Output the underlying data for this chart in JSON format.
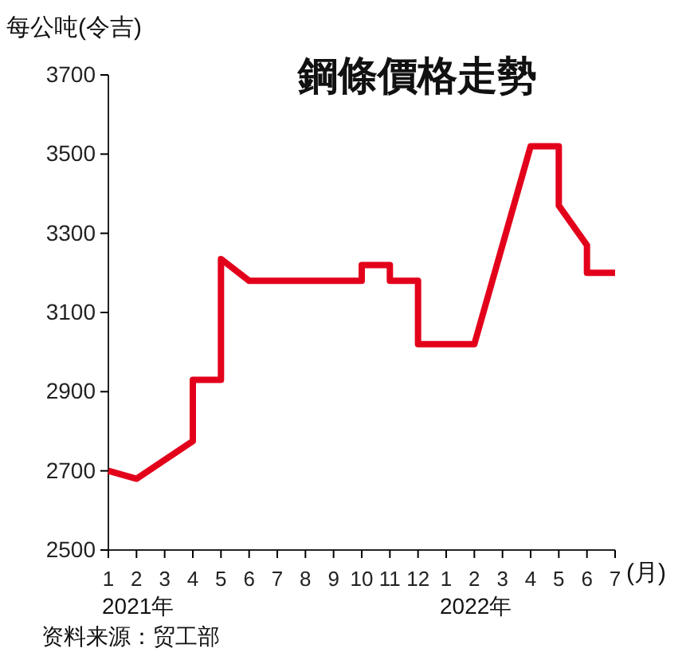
{
  "chart_data": {
    "type": "line",
    "title": "鋼條價格走勢",
    "ylabel": "每公吨(令吉)",
    "xlabel": "(月)",
    "annotations": [
      "2021年",
      "2022年",
      "资料来源：贸工部"
    ],
    "series": [
      {
        "color": "#e3001b",
        "x": [
          "2021-01",
          "2021-02",
          "2021-04",
          "2021-04",
          "2021-05",
          "2021-05",
          "2021-06",
          "2021-10",
          "2021-10",
          "2021-11",
          "2021-11",
          "2021-12",
          "2021-12",
          "2022-02",
          "2022-04",
          "2022-05",
          "2022-05",
          "2022-06",
          "2022-06",
          "2022-07"
        ],
        "values": [
          2700,
          2680,
          2775,
          2930,
          2930,
          3235,
          3180,
          3180,
          3220,
          3220,
          3180,
          3180,
          3020,
          3020,
          3520,
          3520,
          3370,
          3270,
          3200,
          3200
        ]
      }
    ],
    "xlim": [
      "2021-01",
      "2022-07"
    ],
    "xticks": [
      {
        "value": "2021-01",
        "label": "1"
      },
      {
        "value": "2021-02",
        "label": "2"
      },
      {
        "value": "2021-03",
        "label": "3"
      },
      {
        "value": "2021-04",
        "label": "4"
      },
      {
        "value": "2021-05",
        "label": "5"
      },
      {
        "value": "2021-06",
        "label": "6"
      },
      {
        "value": "2021-07",
        "label": "7"
      },
      {
        "value": "2021-08",
        "label": "8"
      },
      {
        "value": "2021-09",
        "label": "9"
      },
      {
        "value": "2021-10",
        "label": "10"
      },
      {
        "value": "2021-11",
        "label": "11"
      },
      {
        "value": "2021-12",
        "label": "12"
      },
      {
        "value": "2022-01",
        "label": "1"
      },
      {
        "value": "2022-02",
        "label": "2"
      },
      {
        "value": "2022-03",
        "label": "3"
      },
      {
        "value": "2022-04",
        "label": "4"
      },
      {
        "value": "2022-05",
        "label": "5"
      },
      {
        "value": "2022-06",
        "label": "6"
      },
      {
        "value": "2022-07",
        "label": "7"
      }
    ],
    "ylim": [
      2500,
      3700
    ],
    "yticks": [
      2500,
      2700,
      2900,
      3100,
      3300,
      3500,
      3700
    ],
    "grid": false,
    "marker": "none",
    "line_style": "solid"
  }
}
